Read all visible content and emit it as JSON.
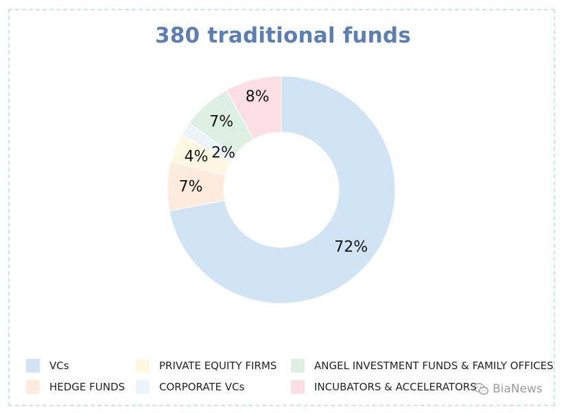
{
  "chart_data": {
    "type": "pie",
    "title": "380 traditional funds",
    "categories": [
      "VCs",
      "HEDGE FUNDS",
      "PRIVATE EQUITY FIRMS",
      "CORPORATE VCs",
      "ANGEL INVESTMENT FUNDS & FAMILY OFFICES",
      "INCUBATORS & ACCELERATORS"
    ],
    "values": [
      72,
      7,
      4,
      2,
      7,
      8
    ],
    "labels": [
      "72%",
      "7%",
      "4%",
      "2%",
      "7%",
      "8%"
    ],
    "colors": [
      "#d1e4f5",
      "#fdebdd",
      "#fef8e3",
      "#ecf3f9",
      "#deefe4",
      "#fbdfe4"
    ],
    "legend_position": "bottom"
  },
  "watermark": {
    "text": "BiaNews",
    "icon": "wechat-icon"
  }
}
